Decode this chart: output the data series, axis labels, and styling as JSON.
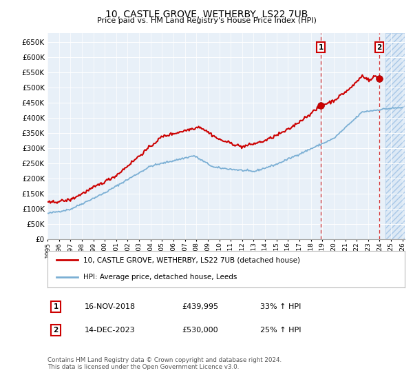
{
  "title": "10, CASTLE GROVE, WETHERBY, LS22 7UB",
  "subtitle": "Price paid vs. HM Land Registry's House Price Index (HPI)",
  "ylim": [
    0,
    680000
  ],
  "yticks": [
    0,
    50000,
    100000,
    150000,
    200000,
    250000,
    300000,
    350000,
    400000,
    450000,
    500000,
    550000,
    600000,
    650000
  ],
  "background_color": "#ffffff",
  "plot_bg_color": "#e8f0f8",
  "grid_color": "#ffffff",
  "hpi_color": "#7bafd4",
  "price_color": "#cc0000",
  "sale1_year": 2018.88,
  "sale1_price": 439995,
  "sale1_label": "£439,995",
  "sale1_date": "16-NOV-2018",
  "sale1_hpi": "33% ↑ HPI",
  "sale2_year": 2023.96,
  "sale2_price": 530000,
  "sale2_label": "£530,000",
  "sale2_date": "14-DEC-2023",
  "sale2_hpi": "25% ↑ HPI",
  "legend_line1": "10, CASTLE GROVE, WETHERBY, LS22 7UB (detached house)",
  "legend_line2": "HPI: Average price, detached house, Leeds",
  "footnote": "Contains HM Land Registry data © Crown copyright and database right 2024.\nThis data is licensed under the Open Government Licence v3.0.",
  "future_start": 2024.5,
  "xmin": 1995,
  "xmax": 2026.2
}
